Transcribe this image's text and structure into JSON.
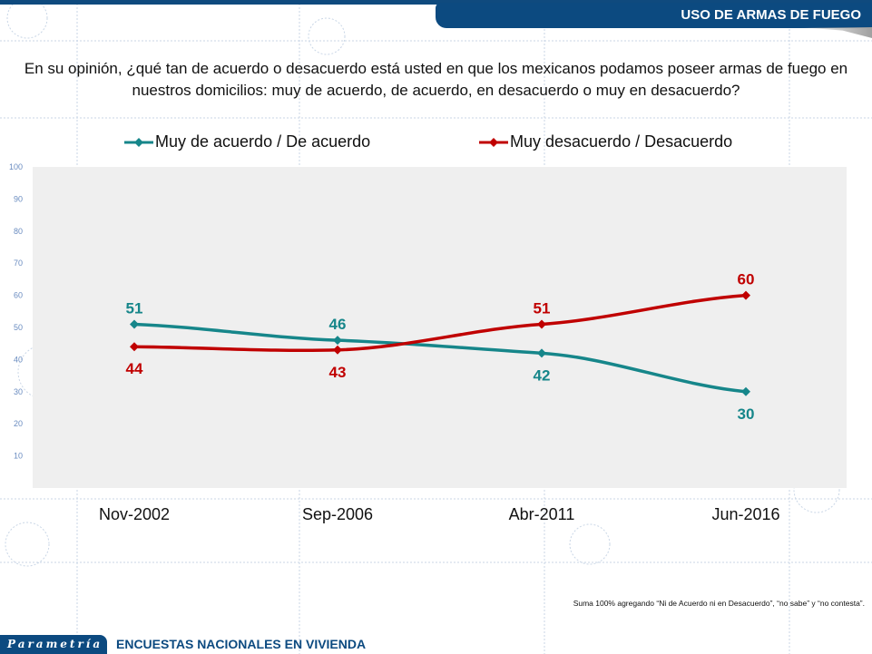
{
  "header": {
    "title": "USO DE ARMAS DE FUEGO"
  },
  "question": "En su opinión, ¿qué tan de acuerdo o desacuerdo está usted en que los mexicanos podamos poseer armas de fuego en nuestros domicilios: muy de acuerdo, de acuerdo, en desacuerdo o muy en desacuerdo?",
  "colors": {
    "brand": "#0c4a80",
    "agree": "#16868a",
    "disagree": "#c00000",
    "plot_bg": "#efefef"
  },
  "chart_data": {
    "type": "line",
    "title": "",
    "xlabel": "",
    "ylabel": "",
    "categories": [
      "Nov-2002",
      "Sep-2006",
      "Abr-2011",
      "Jun-2016"
    ],
    "ylim": [
      0,
      100
    ],
    "yticks": [
      10,
      20,
      30,
      40,
      50,
      60,
      70,
      80,
      90,
      100
    ],
    "grid": false,
    "legend_position": "top",
    "series": [
      {
        "name": "Muy de acuerdo / De acuerdo",
        "color": "#16868a",
        "values": [
          51,
          46,
          42,
          30
        ],
        "label_side": [
          "above",
          "above",
          "below",
          "below"
        ]
      },
      {
        "name": "Muy desacuerdo / Desacuerdo",
        "color": "#c00000",
        "values": [
          44,
          43,
          51,
          60
        ],
        "label_side": [
          "below",
          "below",
          "above",
          "above"
        ]
      }
    ]
  },
  "footnote": "Suma 100% agregando “Ni de Acuerdo ni en Desacuerdo”, “no sabe” y “no contesta”.",
  "footer": {
    "logo": "Parametría",
    "text": "ENCUESTAS NACIONALES  EN VIVIENDA"
  }
}
